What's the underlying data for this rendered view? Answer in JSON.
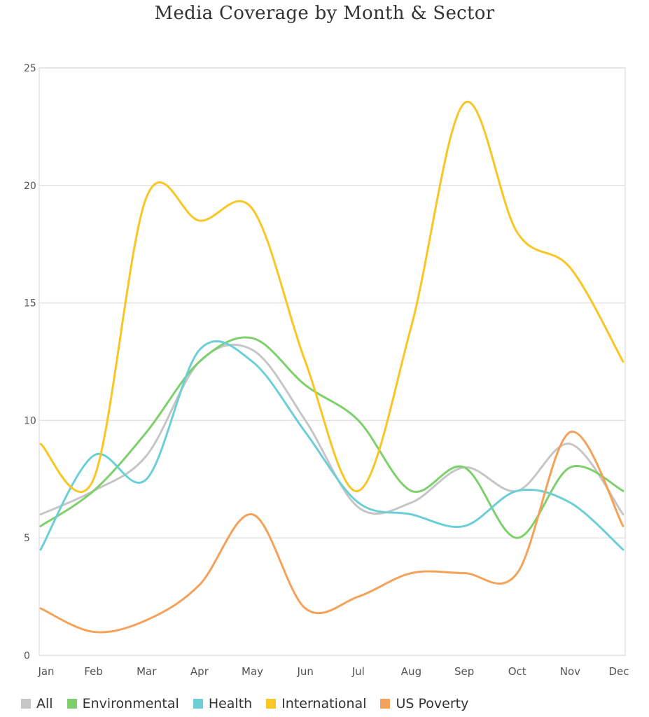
{
  "chart_data": {
    "type": "line",
    "title": "Media Coverage by Month & Sector",
    "categories": [
      "Jan",
      "Feb",
      "Mar",
      "Apr",
      "May",
      "Jun",
      "Jul",
      "Aug",
      "Sep",
      "Oct",
      "Nov",
      "Dec"
    ],
    "ylim": [
      0,
      25
    ],
    "yticks": [
      "0",
      "5",
      "10",
      "15",
      "20",
      "25"
    ],
    "grid": true,
    "legend_position": "bottom",
    "series": [
      {
        "name": "All",
        "color": "#c6c6c6",
        "values": [
          6,
          7,
          8.5,
          12.5,
          13,
          10,
          6.3,
          6.5,
          8,
          7,
          9,
          6
        ]
      },
      {
        "name": "Environmental",
        "color": "#7dd06b",
        "values": [
          5.5,
          7,
          9.5,
          12.5,
          13.5,
          11.5,
          10,
          7,
          8,
          5,
          8,
          7
        ]
      },
      {
        "name": "Health",
        "color": "#6dcfd6",
        "values": [
          4.5,
          8.5,
          7.5,
          13,
          12.5,
          9.5,
          6.5,
          6,
          5.5,
          7,
          6.5,
          4.5
        ]
      },
      {
        "name": "International",
        "color": "#f9c623",
        "values": [
          9,
          7.5,
          19.5,
          18.5,
          19,
          12.5,
          7,
          14,
          23.5,
          18,
          16.5,
          12.5
        ]
      },
      {
        "name": "US Poverty",
        "color": "#f4a259",
        "values": [
          2,
          1,
          1.5,
          3,
          6,
          2,
          2.5,
          3.5,
          3.5,
          3.5,
          9.5,
          5.5
        ]
      }
    ]
  }
}
